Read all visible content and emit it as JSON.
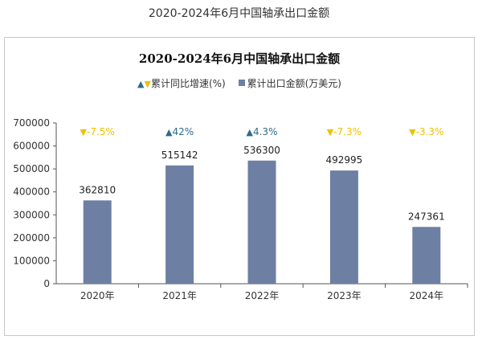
{
  "page_title": "2020-2024年6月中国轴承出口金额",
  "colors": {
    "bar": "#6d7fa3",
    "up": "#2e6b8a",
    "down": "#f0c000",
    "axis": "#555555"
  },
  "chart_data": {
    "type": "bar",
    "title": "2020-2024年6月中国轴承出口金额",
    "legend": {
      "placement": "top",
      "growth_label": "累计同比增速(%)",
      "amount_label": "累计出口金额(万美元)"
    },
    "categories": [
      "2020年",
      "2021年",
      "2022年",
      "2023年",
      "2024年"
    ],
    "series": [
      {
        "name": "累计出口金额(万美元)",
        "values": [
          362810,
          515142,
          536300,
          492995,
          247361
        ]
      }
    ],
    "growth": [
      {
        "label": "-7.5%",
        "direction": "down"
      },
      {
        "label": "42%",
        "direction": "up"
      },
      {
        "label": "4.3%",
        "direction": "up"
      },
      {
        "label": "-7.3%",
        "direction": "down"
      },
      {
        "label": "-3.3%",
        "direction": "down"
      }
    ],
    "ylim": [
      0,
      700000
    ],
    "yticks": [
      "0",
      "100000",
      "200000",
      "300000",
      "400000",
      "500000",
      "600000",
      "700000"
    ],
    "grid": false
  }
}
